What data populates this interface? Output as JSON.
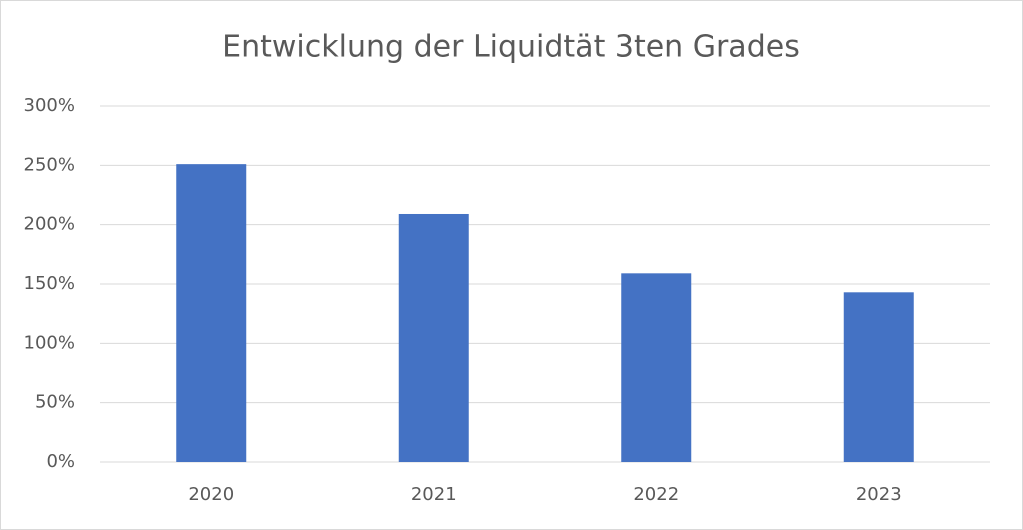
{
  "chart_data": {
    "type": "bar",
    "title": "Entwicklung der Liquidtät 3ten Grades",
    "categories": [
      "2020",
      "2021",
      "2022",
      "2023"
    ],
    "values": [
      251,
      209,
      159,
      143
    ],
    "color": "#4472c4",
    "ylim": [
      0,
      300
    ],
    "yticks": [
      {
        "value": 0,
        "label": "0%"
      },
      {
        "value": 50,
        "label": "50%"
      },
      {
        "value": 100,
        "label": "100%"
      },
      {
        "value": 150,
        "label": "150%"
      },
      {
        "value": 200,
        "label": "200%"
      },
      {
        "value": 250,
        "label": "250%"
      },
      {
        "value": 300,
        "label": "300%"
      }
    ],
    "grid": true
  }
}
